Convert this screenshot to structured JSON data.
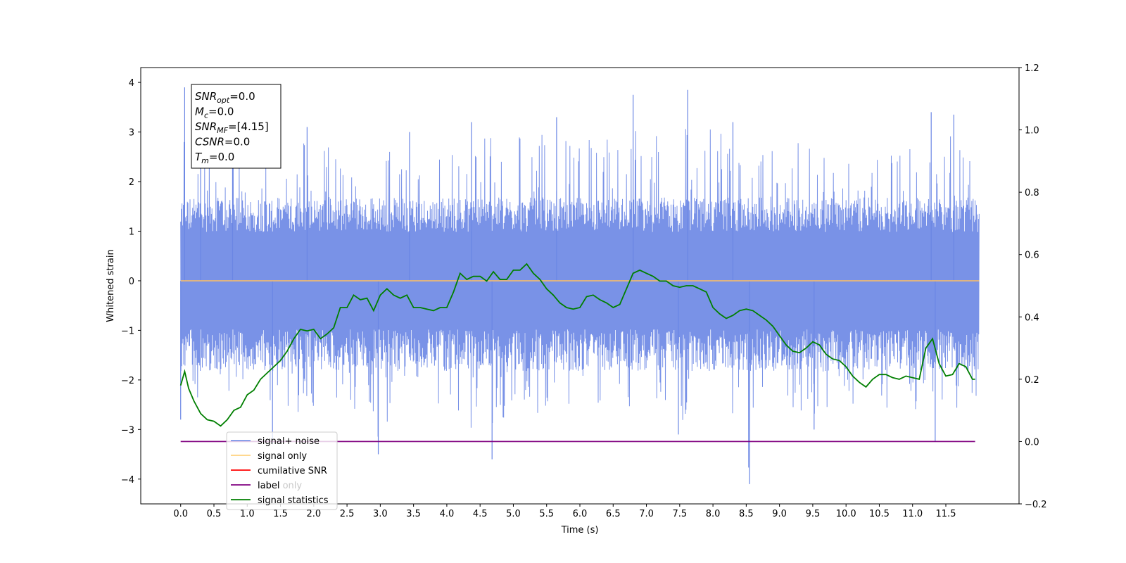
{
  "chart_data": {
    "type": "line",
    "xlabel": "Time (s)",
    "ylabel": "Whitened strain",
    "xlim": [
      -0.6,
      12.6
    ],
    "ylim": [
      -4.5,
      4.3
    ],
    "ylim_right": [
      -0.2,
      1.2
    ],
    "x_ticks": [
      "0.0",
      "0.5",
      "1.0",
      "1.5",
      "2.0",
      "2.5",
      "3.0",
      "3.5",
      "4.0",
      "4.5",
      "5.0",
      "5.5",
      "6.0",
      "6.5",
      "7.0",
      "7.5",
      "8.0",
      "8.5",
      "9.0",
      "9.5",
      "10.0",
      "10.5",
      "11.0",
      "11.5"
    ],
    "y_ticks": [
      "4",
      "3",
      "2",
      "1",
      "0",
      "−1",
      "−2",
      "−3",
      "−4"
    ],
    "y_ticks_right": [
      "1.2",
      "1.0",
      "0.8",
      "0.6",
      "0.4",
      "0.2",
      "0.0",
      "−0.2"
    ],
    "info_box": {
      "lines": [
        {
          "symbol": "SNR",
          "sub": "opt",
          "value": "=0.0"
        },
        {
          "symbol": "M",
          "sub": "c",
          "value": "=0.0"
        },
        {
          "symbol": "SNR",
          "sub": "MF",
          "value": "=[4.15]"
        },
        {
          "symbol": "CSNR",
          "sub": "",
          "value": "=0.0"
        },
        {
          "symbol": "T",
          "sub": "m",
          "value": "=0.0"
        }
      ]
    },
    "legend": {
      "location": "lower-left",
      "entries": [
        {
          "label": "signal+ noise",
          "color": "#7a95e8"
        },
        {
          "label": "signal only",
          "color": "#ffd27f"
        },
        {
          "label": "cumilative SNR",
          "color": "#ff0000"
        },
        {
          "label": "label",
          "color": "#800080"
        },
        {
          "label": "signal statistics",
          "color": "#007f00"
        }
      ],
      "hidden_text": "label only"
    },
    "series": [
      {
        "name": "signal+ noise",
        "axis": "left",
        "color": "#6a86e4",
        "x_range": [
          0.0,
          12.0
        ],
        "envelope": {
          "x": [
            0.0,
            0.5,
            1.0,
            1.5,
            2.0,
            2.5,
            3.0,
            3.5,
            4.0,
            4.5,
            5.0,
            5.5,
            6.0,
            6.5,
            7.0,
            7.5,
            8.0,
            8.5,
            9.0,
            9.5,
            10.0,
            10.5,
            11.0,
            11.5,
            12.0
          ],
          "upper": [
            3.9,
            2.8,
            2.7,
            2.6,
            3.2,
            2.7,
            2.8,
            2.8,
            2.9,
            3.4,
            3.2,
            3.3,
            3.2,
            3.1,
            3.5,
            3.3,
            3.3,
            3.2,
            2.9,
            3.0,
            2.9,
            3.0,
            3.4,
            3.4,
            2.3
          ],
          "lower": [
            -2.8,
            -2.3,
            -2.4,
            -3.2,
            -2.9,
            -2.6,
            -3.5,
            -2.9,
            -2.7,
            -3.3,
            -3.0,
            -2.8,
            -2.7,
            -2.8,
            -2.7,
            -3.1,
            -2.7,
            -4.1,
            -2.8,
            -3.0,
            -2.6,
            -2.8,
            -2.8,
            -3.2,
            -2.4
          ],
          "core": 1.4,
          "peaks": [
            {
              "x": 0.06,
              "y": 3.9
            },
            {
              "x": 0.3,
              "y": 3.3
            },
            {
              "x": 0.78,
              "y": 2.9
            },
            {
              "x": 1.9,
              "y": 3.1
            },
            {
              "x": 3.44,
              "y": 3.0
            },
            {
              "x": 4.37,
              "y": 3.2
            },
            {
              "x": 5.65,
              "y": 3.3
            },
            {
              "x": 6.8,
              "y": 3.75
            },
            {
              "x": 7.62,
              "y": 3.85
            },
            {
              "x": 8.3,
              "y": 3.2
            },
            {
              "x": 11.28,
              "y": 3.4
            },
            {
              "x": 11.62,
              "y": 3.35
            },
            {
              "x": 2.97,
              "y": -3.5
            },
            {
              "x": 4.68,
              "y": -3.6
            },
            {
              "x": 8.55,
              "y": -4.1
            },
            {
              "x": 11.34,
              "y": -3.25
            },
            {
              "x": 1.38,
              "y": -3.3
            },
            {
              "x": 7.48,
              "y": -3.1
            },
            {
              "x": 9.52,
              "y": -3.0
            },
            {
              "x": 0.0,
              "y": -2.8
            }
          ]
        }
      },
      {
        "name": "signal only",
        "axis": "left",
        "color": "#ffbf60",
        "x": [
          0.0,
          12.0
        ],
        "y": [
          0.0,
          0.0
        ]
      },
      {
        "name": "label",
        "axis": "right",
        "color": "#800080",
        "x": [
          0.0,
          11.94
        ],
        "y": [
          0.0,
          0.0
        ]
      },
      {
        "name": "signal statistics",
        "axis": "right",
        "color": "#007f00",
        "x": [
          0.0,
          0.06,
          0.12,
          0.2,
          0.3,
          0.4,
          0.5,
          0.6,
          0.7,
          0.8,
          0.9,
          1.0,
          1.1,
          1.2,
          1.3,
          1.4,
          1.5,
          1.6,
          1.7,
          1.8,
          1.9,
          2.0,
          2.1,
          2.2,
          2.3,
          2.4,
          2.5,
          2.6,
          2.7,
          2.8,
          2.9,
          3.0,
          3.1,
          3.2,
          3.3,
          3.4,
          3.5,
          3.6,
          3.7,
          3.8,
          3.9,
          4.0,
          4.1,
          4.2,
          4.3,
          4.4,
          4.5,
          4.6,
          4.7,
          4.8,
          4.9,
          5.0,
          5.1,
          5.2,
          5.3,
          5.4,
          5.5,
          5.6,
          5.7,
          5.8,
          5.9,
          6.0,
          6.1,
          6.2,
          6.3,
          6.4,
          6.5,
          6.6,
          6.7,
          6.8,
          6.9,
          7.0,
          7.1,
          7.2,
          7.3,
          7.4,
          7.5,
          7.6,
          7.7,
          7.8,
          7.9,
          8.0,
          8.1,
          8.2,
          8.3,
          8.4,
          8.5,
          8.6,
          8.7,
          8.8,
          8.9,
          9.0,
          9.1,
          9.2,
          9.3,
          9.4,
          9.5,
          9.6,
          9.7,
          9.8,
          9.9,
          10.0,
          10.1,
          10.2,
          10.3,
          10.4,
          10.5,
          10.6,
          10.7,
          10.8,
          10.9,
          11.0,
          11.1,
          11.2,
          11.3,
          11.4,
          11.5,
          11.6,
          11.7,
          11.8,
          11.9,
          11.94
        ],
        "y": [
          0.18,
          0.225,
          0.17,
          0.13,
          0.09,
          0.07,
          0.065,
          0.05,
          0.07,
          0.1,
          0.11,
          0.15,
          0.165,
          0.2,
          0.22,
          0.24,
          0.26,
          0.29,
          0.33,
          0.36,
          0.355,
          0.36,
          0.33,
          0.345,
          0.365,
          0.43,
          0.43,
          0.47,
          0.455,
          0.46,
          0.42,
          0.47,
          0.49,
          0.47,
          0.46,
          0.47,
          0.43,
          0.43,
          0.425,
          0.42,
          0.43,
          0.43,
          0.48,
          0.54,
          0.52,
          0.53,
          0.53,
          0.515,
          0.545,
          0.52,
          0.52,
          0.55,
          0.55,
          0.57,
          0.54,
          0.52,
          0.49,
          0.47,
          0.445,
          0.43,
          0.425,
          0.43,
          0.465,
          0.47,
          0.455,
          0.445,
          0.43,
          0.44,
          0.49,
          0.54,
          0.55,
          0.54,
          0.53,
          0.515,
          0.515,
          0.5,
          0.495,
          0.5,
          0.5,
          0.49,
          0.48,
          0.43,
          0.41,
          0.395,
          0.405,
          0.42,
          0.425,
          0.42,
          0.405,
          0.39,
          0.37,
          0.34,
          0.31,
          0.29,
          0.285,
          0.3,
          0.32,
          0.31,
          0.28,
          0.265,
          0.26,
          0.24,
          0.21,
          0.19,
          0.175,
          0.2,
          0.215,
          0.215,
          0.205,
          0.2,
          0.21,
          0.205,
          0.2,
          0.3,
          0.33,
          0.25,
          0.21,
          0.215,
          0.25,
          0.24,
          0.2,
          0.2
        ]
      }
    ]
  }
}
